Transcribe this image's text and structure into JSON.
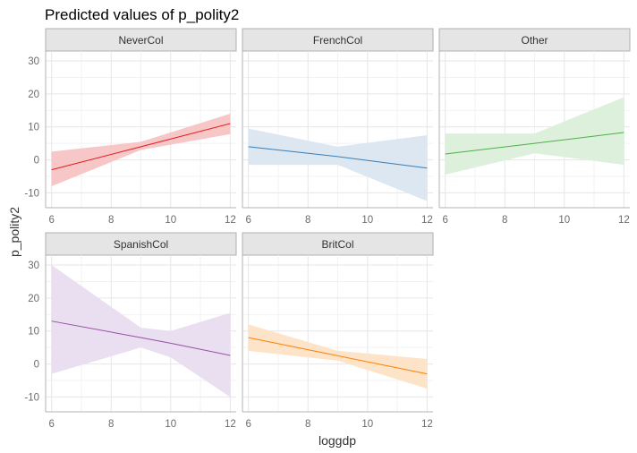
{
  "chart_data": {
    "type": "line",
    "title": "Predicted values of p_polity2",
    "xlabel": "loggdp",
    "ylabel": "p_polity2",
    "xlim": [
      5.8,
      12.2
    ],
    "ylim": [
      -14.5,
      33
    ],
    "xticks": [
      6,
      8,
      10,
      12
    ],
    "yticks": [
      -10,
      0,
      10,
      20,
      30
    ],
    "grid": true,
    "legend": "none",
    "facets": [
      {
        "name": "NeverCol",
        "color": "#e41a1c",
        "fill": "#f7c6c7",
        "x": [
          6,
          9,
          12
        ],
        "y": [
          -3,
          4,
          11
        ],
        "ci_low": [
          -8,
          3,
          7.8
        ],
        "ci_high": [
          2.5,
          5.5,
          14
        ]
      },
      {
        "name": "FrenchCol",
        "color": "#377eb8",
        "fill": "#dce7f2",
        "x": [
          6,
          9,
          12
        ],
        "y": [
          4,
          1,
          -2.5
        ],
        "ci_low": [
          -1.5,
          -1.5,
          -12.5
        ],
        "ci_high": [
          9.5,
          4,
          7.5
        ]
      },
      {
        "name": "Other",
        "color": "#4daf4a",
        "fill": "#ddf0dc",
        "x": [
          6,
          9,
          12
        ],
        "y": [
          1.8,
          5,
          8.3
        ],
        "ci_low": [
          -4.5,
          2,
          -1.5
        ],
        "ci_high": [
          8,
          8,
          19
        ]
      },
      {
        "name": "SpanishCol",
        "color": "#984ea3",
        "fill": "#eadff0",
        "x": [
          6,
          9,
          10,
          12
        ],
        "y": [
          13,
          8,
          6.3,
          2.6
        ],
        "ci_low": [
          -3,
          5,
          2,
          -10
        ],
        "ci_high": [
          30,
          11,
          10,
          15.5
        ]
      },
      {
        "name": "BritCol",
        "color": "#ff7f00",
        "fill": "#fde3c8",
        "x": [
          6,
          9,
          12
        ],
        "y": [
          8,
          2.5,
          -3
        ],
        "ci_low": [
          4,
          1,
          -7.5
        ],
        "ci_high": [
          12,
          4,
          1.5
        ]
      }
    ]
  }
}
